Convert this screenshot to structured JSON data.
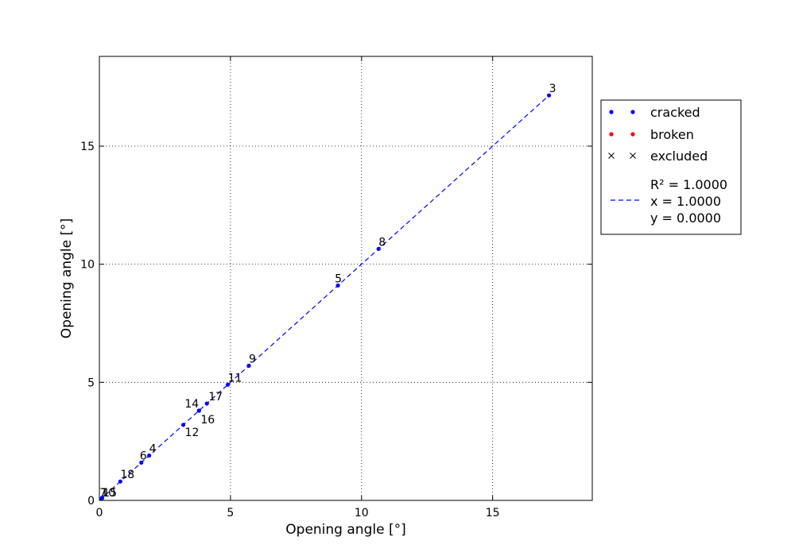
{
  "chart_data": {
    "type": "scatter",
    "xlabel": "Opening angle [°]",
    "ylabel": "Opening angle [°]",
    "xlim": [
      0,
      18.8
    ],
    "ylim": [
      0,
      18.8
    ],
    "x_ticks": [
      0,
      5,
      10,
      15
    ],
    "y_ticks": [
      0,
      5,
      10,
      15
    ],
    "grid": true,
    "legend_position": "outside-right",
    "series": [
      {
        "name": "cracked",
        "color": "#0000ff",
        "marker": "dot",
        "points": [
          {
            "label": "3",
            "x": 17.15,
            "y": 17.15
          },
          {
            "label": "8",
            "x": 10.65,
            "y": 10.65
          },
          {
            "label": "5",
            "x": 9.1,
            "y": 9.1
          },
          {
            "label": "9",
            "x": 5.7,
            "y": 5.7
          },
          {
            "label": "11",
            "x": 4.9,
            "y": 4.9
          },
          {
            "label": "17",
            "x": 4.1,
            "y": 4.1
          },
          {
            "label": "14",
            "x": 3.8,
            "y": 3.8
          },
          {
            "label": "16",
            "x": 3.8,
            "y": 3.8
          },
          {
            "label": "12",
            "x": 3.2,
            "y": 3.2
          },
          {
            "label": "4",
            "x": 1.9,
            "y": 1.9
          },
          {
            "label": "6",
            "x": 1.6,
            "y": 1.6
          },
          {
            "label": "18",
            "x": 0.8,
            "y": 0.8
          },
          {
            "label": "7",
            "x": 0.1,
            "y": 0.1
          },
          {
            "label": "10",
            "x": 0.1,
            "y": 0.1
          },
          {
            "label": "15",
            "x": 0.1,
            "y": 0.1
          }
        ]
      },
      {
        "name": "broken",
        "color": "#ff0000",
        "marker": "dot",
        "points": []
      },
      {
        "name": "excluded",
        "color": "#000000",
        "marker": "x",
        "points": []
      }
    ],
    "fit": {
      "color": "#0000ff",
      "style": "dashed",
      "slope": 1.0,
      "intercept": 0.0,
      "x_range": [
        0,
        17.15
      ],
      "legend_lines": [
        "R² = 1.0000",
        "x = 1.0000",
        "y = 0.0000"
      ]
    }
  }
}
